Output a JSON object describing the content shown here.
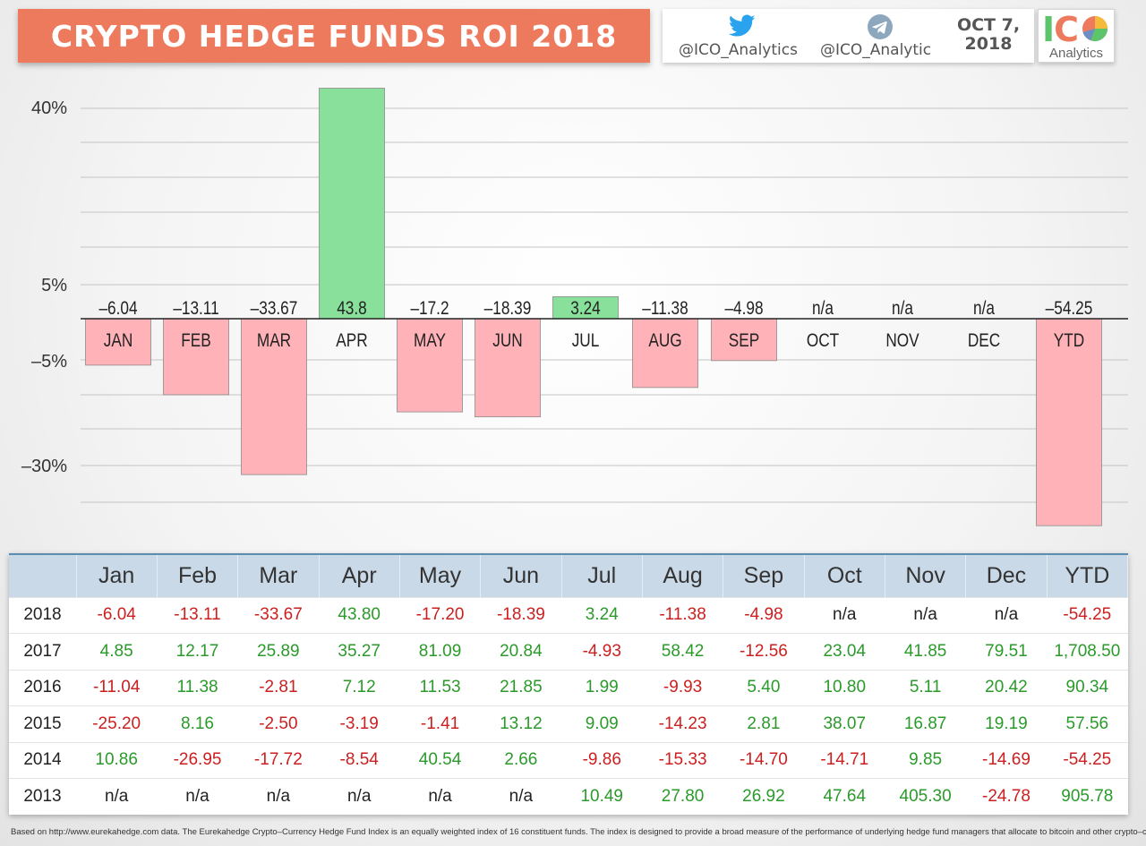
{
  "header": {
    "title": "CRYPTO HEDGE FUNDS ROI 2018",
    "twitter_handle": "@ICO_Analytics",
    "telegram_handle": "@ICO_Analytic",
    "date_line1": "OCT 7,",
    "date_line2": "2018",
    "logo_text_i": "I",
    "logo_text_c": "C",
    "logo_subtitle": "Analytics",
    "icons": [
      "twitter-bird-icon",
      "telegram-plane-icon",
      "pie-logo-icon"
    ]
  },
  "colors": {
    "banner": "#ee7a5e",
    "positive_bar": "#88e09a",
    "negative_bar": "#ffb3b8",
    "positive_text": "#2a9a2a",
    "negative_text": "#cc1f1f",
    "table_header": "#c9d9e8"
  },
  "chart_data": {
    "type": "bar",
    "title": "CRYPTO HEDGE FUNDS ROI 2018",
    "categories": [
      "JAN",
      "FEB",
      "MAR",
      "APR",
      "MAY",
      "JUN",
      "JUL",
      "AUG",
      "SEP",
      "OCT",
      "NOV",
      "DEC",
      "YTD"
    ],
    "values": [
      -6.04,
      -13.11,
      -33.67,
      43.8,
      -17.2,
      -18.39,
      3.24,
      -11.38,
      -4.98,
      null,
      null,
      null,
      -54.25
    ],
    "data_labels": [
      "–6.04",
      "–13.11",
      "–33.67",
      "43.8",
      "–17.2",
      "–18.39",
      "3.24",
      "–11.38",
      "–4.98",
      "n/a",
      "n/a",
      "n/a",
      "–54.25"
    ],
    "y_tick_labels": [
      "40%",
      "5%",
      "–5%",
      "–30%"
    ],
    "y_tick_values": [
      40,
      5,
      -5,
      -30
    ],
    "grid": true,
    "legend": "none"
  },
  "table": {
    "columns": [
      "",
      "Jan",
      "Feb",
      "Mar",
      "Apr",
      "May",
      "Jun",
      "Jul",
      "Aug",
      "Sep",
      "Oct",
      "Nov",
      "Dec",
      "YTD"
    ],
    "rows": [
      {
        "year": "2018",
        "values": [
          "-6.04",
          "-13.11",
          "-33.67",
          "43.80",
          "-17.20",
          "-18.39",
          "3.24",
          "-11.38",
          "-4.98",
          "n/a",
          "n/a",
          "n/a",
          "-54.25"
        ]
      },
      {
        "year": "2017",
        "values": [
          "4.85",
          "12.17",
          "25.89",
          "35.27",
          "81.09",
          "20.84",
          "-4.93",
          "58.42",
          "-12.56",
          "23.04",
          "41.85",
          "79.51",
          "1,708.50"
        ]
      },
      {
        "year": "2016",
        "values": [
          "-11.04",
          "11.38",
          "-2.81",
          "7.12",
          "11.53",
          "21.85",
          "1.99",
          "-9.93",
          "5.40",
          "10.80",
          "5.11",
          "20.42",
          "90.34"
        ]
      },
      {
        "year": "2015",
        "values": [
          "-25.20",
          "8.16",
          "-2.50",
          "-3.19",
          "-1.41",
          "13.12",
          "9.09",
          "-14.23",
          "2.81",
          "38.07",
          "16.87",
          "19.19",
          "57.56"
        ]
      },
      {
        "year": "2014",
        "values": [
          "10.86",
          "-26.95",
          "-17.72",
          "-8.54",
          "40.54",
          "2.66",
          "-9.86",
          "-15.33",
          "-14.70",
          "-14.71",
          "9.85",
          "-14.69",
          "-54.25"
        ]
      },
      {
        "year": "2013",
        "values": [
          "n/a",
          "n/a",
          "n/a",
          "n/a",
          "n/a",
          "n/a",
          "10.49",
          "27.80",
          "26.92",
          "47.64",
          "405.30",
          "-24.78",
          "905.78"
        ]
      }
    ]
  },
  "footnote": "Based on http://www.eurekahedge.com data. The Eurekahedge Crypto–Currency Hedge Fund Index is an equally weighted index of 16 constituent funds. The index is designed to provide a broad measure of the performance of underlying hedge fund managers that allocate to bitcoin and other crypto–currencies."
}
